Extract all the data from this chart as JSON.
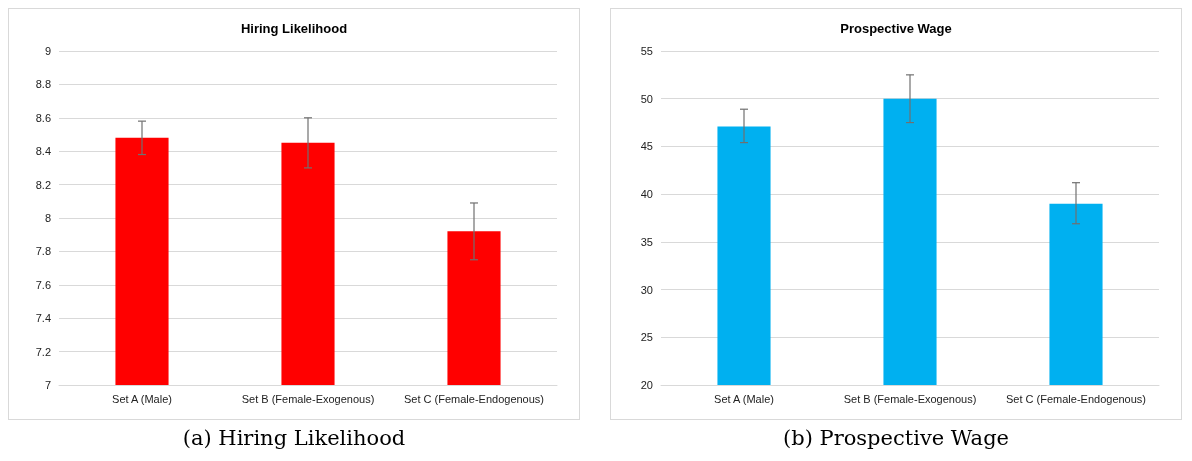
{
  "chart_data": [
    {
      "type": "bar",
      "title": "Hiring Likelihood",
      "categories": [
        "Set A (Male)",
        "Set B (Female-Exogenous)",
        "Set C (Female-Endogenous)"
      ],
      "series": [
        {
          "color": "#ff0000",
          "values": [
            8.48,
            8.45,
            7.92
          ],
          "errors": [
            [
              8.38,
              8.58
            ],
            [
              8.3,
              8.6
            ],
            [
              7.75,
              8.09
            ]
          ]
        }
      ],
      "ylim": [
        7,
        9
      ],
      "yticks": [
        7,
        7.2,
        7.4,
        7.6,
        7.8,
        8,
        8.2,
        8.4,
        8.6,
        8.8,
        9
      ],
      "grid": "y",
      "annotations": [
        "(a) Hiring Likelihood"
      ]
    },
    {
      "type": "bar",
      "title": "Prospective Wage",
      "categories": [
        "Set A (Male)",
        "Set B (Female-Exogenous)",
        "Set C (Female-Endogenous)"
      ],
      "series": [
        {
          "color": "#00b0f0",
          "values": [
            47.1,
            50,
            39
          ],
          "errors": [
            [
              45.4,
              48.9
            ],
            [
              47.5,
              52.5
            ],
            [
              36.9,
              41.2
            ]
          ]
        }
      ],
      "ylim": [
        20,
        55
      ],
      "yticks": [
        20,
        25,
        30,
        35,
        40,
        45,
        50,
        55
      ],
      "grid": "y",
      "annotations": [
        "(b) Prospective Wage"
      ]
    }
  ]
}
